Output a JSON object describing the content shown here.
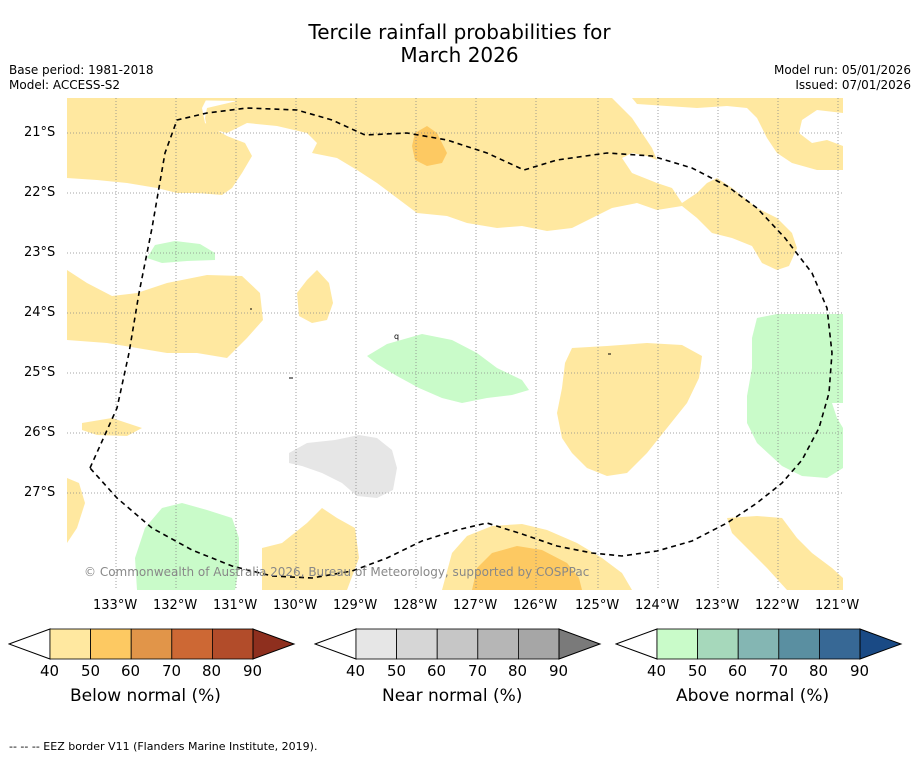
{
  "title_line1": "Tercile rainfall probabilities for",
  "title_line2": "March 2026",
  "base_period": "Base period: 1981-2018",
  "model": "Model: ACCESS-S2",
  "model_run": "Model run: 05/01/2026",
  "issued": "Issued: 07/01/2026",
  "copyright": "© Commonwealth of Australia 2026, Bureau of Meteorology, supported by COSPPac",
  "lat_labels": [
    "21°S",
    "22°S",
    "23°S",
    "24°S",
    "25°S",
    "26°S",
    "27°S"
  ],
  "lon_labels": [
    "133°W",
    "132°W",
    "131°W",
    "130°W",
    "129°W",
    "128°W",
    "127°W",
    "126°W",
    "125°W",
    "124°W",
    "123°W",
    "122°W",
    "121°W"
  ],
  "colorbars": [
    {
      "title": "Below normal (%)",
      "ticks": [
        "40",
        "50",
        "60",
        "70",
        "80",
        "90"
      ],
      "colors": [
        "#ffe8a0",
        "#fdc962",
        "#e19549",
        "#cd6834",
        "#b24c2a",
        "#8e2f1e"
      ]
    },
    {
      "title": "Near normal (%)",
      "ticks": [
        "40",
        "50",
        "60",
        "70",
        "80",
        "90"
      ],
      "colors": [
        "#e6e6e6",
        "#d6d6d6",
        "#c6c6c6",
        "#b6b6b6",
        "#a6a6a6",
        "#7a7a7a"
      ]
    },
    {
      "title": "Above normal (%)",
      "ticks": [
        "40",
        "50",
        "60",
        "70",
        "80",
        "90"
      ],
      "colors": [
        "#c9fbc9",
        "#a6d8bb",
        "#84b6b3",
        "#5a8fa1",
        "#376895",
        "#1a4a85"
      ]
    }
  ],
  "footer": "--  --  -- EEZ border V11 (Flanders Marine Institute, 2019)."
}
